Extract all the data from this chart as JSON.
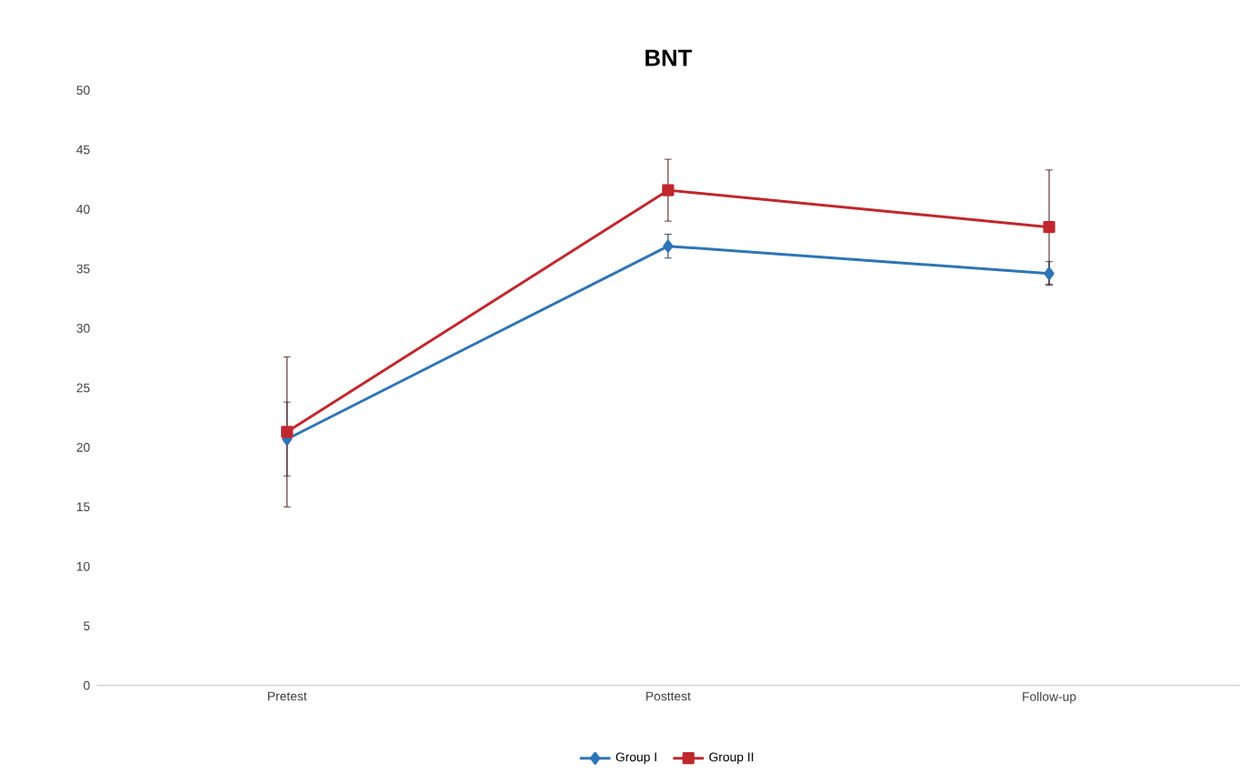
{
  "chart_data": {
    "type": "line",
    "title": "BNT",
    "categories": [
      "Pretest",
      "Posttest",
      "Follow-up"
    ],
    "series": [
      {
        "name": "Group I",
        "color": "#2e75b6",
        "marker": "diamond",
        "values": [
          20.7,
          36.9,
          34.6
        ],
        "errors": [
          3.1,
          1.0,
          1.0
        ]
      },
      {
        "name": "Group II",
        "color": "#c0282d",
        "marker": "square",
        "values": [
          21.3,
          41.6,
          38.5
        ],
        "errors": [
          6.3,
          2.6,
          4.8
        ]
      }
    ],
    "ylim": [
      0,
      50
    ],
    "yticks": [
      0,
      5,
      10,
      15,
      20,
      25,
      30,
      35,
      40,
      45,
      50
    ],
    "grid": false,
    "legend": "bottom"
  }
}
